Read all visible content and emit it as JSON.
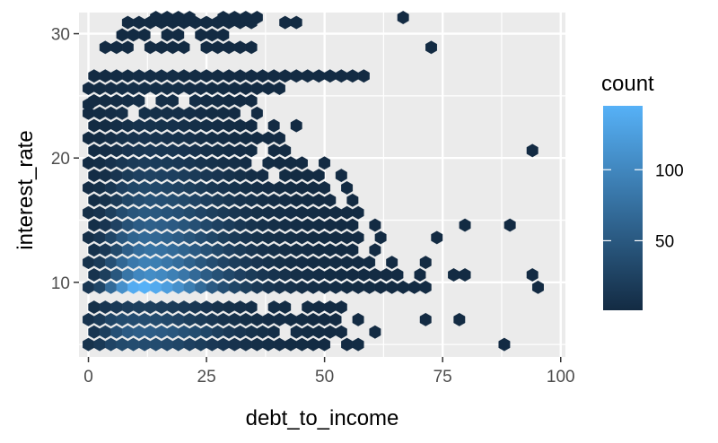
{
  "chart_data": {
    "type": "heatmap",
    "subtype": "hexbin",
    "title": "",
    "xlabel": "debt_to_income",
    "ylabel": "interest_rate",
    "xlim": [
      -2,
      101
    ],
    "ylim": [
      4.0,
      31.7
    ],
    "x_ticks": [
      0,
      25,
      50,
      75,
      100
    ],
    "x_tick_labels": [
      "0",
      "25",
      "50",
      "75",
      "100"
    ],
    "y_ticks": [
      10,
      20,
      30
    ],
    "y_tick_labels": [
      "10",
      "20",
      "30"
    ],
    "grid": true,
    "legend": {
      "title": "count",
      "position": "right",
      "min": 1,
      "max": 145,
      "breaks": [
        50,
        100
      ],
      "break_labels": [
        "50",
        "100"
      ],
      "color_low": "#132B43",
      "color_high": "#56B1F7"
    },
    "hex_width": 2.38,
    "hex_row_height": 1.0,
    "rows": [
      {
        "y": 5.0,
        "x_start": 0.0,
        "counts": [
          8,
          16,
          28,
          34,
          36,
          35,
          36,
          33,
          30,
          24,
          20,
          15,
          12,
          9,
          7,
          5,
          4,
          3,
          2,
          2,
          1,
          1,
          0,
          1,
          2,
          0,
          0,
          0,
          0,
          0,
          0,
          0,
          0,
          0,
          0,
          0,
          0,
          1,
          0
        ]
      },
      {
        "y": 6.0,
        "x_start": 1.19,
        "counts": [
          12,
          22,
          40,
          52,
          56,
          55,
          52,
          48,
          42,
          36,
          30,
          22,
          16,
          12,
          8,
          6,
          4,
          0,
          3,
          2,
          2,
          1,
          1,
          0,
          0,
          1,
          0,
          0,
          0,
          0,
          0,
          0,
          0,
          0,
          0,
          0,
          0,
          0,
          0,
          0,
          0
        ]
      },
      {
        "y": 7.0,
        "x_start": 0.0,
        "counts": [
          10,
          18,
          30,
          36,
          38,
          38,
          36,
          32,
          28,
          22,
          18,
          14,
          10,
          8,
          6,
          4,
          3,
          3,
          2,
          2,
          1,
          1,
          1,
          0,
          1,
          0,
          0,
          0,
          0,
          0,
          1,
          0,
          0,
          1,
          0
        ]
      },
      {
        "y": 8.0,
        "x_start": 1.19,
        "counts": [
          6,
          12,
          16,
          20,
          22,
          22,
          20,
          18,
          16,
          14,
          11,
          8,
          6,
          5,
          4,
          0,
          3,
          2,
          0,
          2,
          1,
          1,
          1,
          0,
          0,
          0,
          0,
          0,
          0,
          0,
          0,
          0,
          0,
          0,
          0,
          0,
          0,
          0,
          0,
          0
        ]
      },
      {
        "y": 9.0,
        "x_start": 0.0,
        "counts": [
          0,
          0,
          0,
          0,
          0,
          0,
          0,
          0,
          0,
          0,
          0,
          0,
          0,
          0,
          0,
          0,
          0,
          0,
          0,
          0,
          0,
          0,
          0,
          0,
          0,
          0,
          0,
          0,
          0,
          0,
          0,
          0,
          0,
          0,
          0,
          0
        ]
      },
      {
        "y": 9.6,
        "x_start": 0.0,
        "counts": [
          14,
          30,
          70,
          110,
          140,
          145,
          138,
          125,
          110,
          90,
          70,
          52,
          40,
          30,
          22,
          16,
          12,
          9,
          7,
          5,
          4,
          3,
          3,
          2,
          2,
          2,
          1,
          1,
          1,
          1,
          1,
          0,
          0,
          0,
          0,
          0,
          0,
          0,
          0,
          0,
          1
        ]
      },
      {
        "y": 10.6,
        "x_start": 1.19,
        "counts": [
          10,
          22,
          48,
          80,
          100,
          106,
          102,
          92,
          82,
          68,
          54,
          42,
          32,
          24,
          18,
          13,
          10,
          7,
          5,
          4,
          3,
          2,
          2,
          1,
          1,
          1,
          1,
          1,
          0,
          1,
          0,
          0,
          1,
          1,
          0,
          0,
          0,
          0,
          0,
          1
        ]
      },
      {
        "y": 11.6,
        "x_start": 0.0,
        "counts": [
          8,
          18,
          40,
          66,
          84,
          92,
          90,
          82,
          72,
          60,
          48,
          38,
          28,
          20,
          15,
          11,
          8,
          6,
          4,
          3,
          2,
          2,
          1,
          1,
          1,
          1,
          0,
          1,
          0,
          0,
          1,
          0,
          0,
          0,
          0,
          0,
          0,
          0,
          0,
          0
        ]
      },
      {
        "y": 12.6,
        "x_start": 1.19,
        "counts": [
          8,
          16,
          34,
          56,
          72,
          78,
          76,
          70,
          62,
          52,
          42,
          32,
          24,
          18,
          13,
          9,
          7,
          5,
          4,
          3,
          2,
          2,
          1,
          1,
          0,
          1,
          0,
          0,
          0,
          0,
          0,
          0,
          0,
          0,
          0,
          0,
          0,
          0,
          0,
          0
        ]
      },
      {
        "y": 13.6,
        "x_start": 0.0,
        "counts": [
          6,
          14,
          30,
          48,
          62,
          68,
          66,
          60,
          54,
          46,
          38,
          30,
          22,
          16,
          12,
          8,
          6,
          5,
          4,
          3,
          2,
          2,
          1,
          1,
          1,
          0,
          1,
          0,
          0,
          0,
          0,
          1,
          0,
          0,
          0,
          0,
          0,
          0,
          0,
          0
        ]
      },
      {
        "y": 14.6,
        "x_start": 1.19,
        "counts": [
          6,
          12,
          26,
          42,
          54,
          58,
          56,
          52,
          46,
          40,
          32,
          25,
          19,
          14,
          10,
          7,
          5,
          4,
          3,
          2,
          2,
          1,
          1,
          1,
          0,
          1,
          0,
          0,
          0,
          0,
          0,
          0,
          0,
          1,
          0,
          0,
          0,
          1,
          0,
          0
        ]
      },
      {
        "y": 15.6,
        "x_start": 0.0,
        "counts": [
          5,
          10,
          22,
          36,
          46,
          50,
          48,
          44,
          40,
          34,
          28,
          22,
          17,
          12,
          9,
          6,
          5,
          4,
          3,
          2,
          2,
          1,
          1,
          1,
          1,
          0,
          0,
          0,
          0,
          0,
          0,
          0,
          0,
          0,
          0,
          0,
          0,
          0,
          0,
          0
        ]
      },
      {
        "y": 16.6,
        "x_start": 1.19,
        "counts": [
          4,
          8,
          18,
          30,
          38,
          42,
          40,
          37,
          33,
          28,
          23,
          18,
          14,
          10,
          8,
          5,
          4,
          3,
          2,
          2,
          1,
          1,
          0,
          1,
          0,
          0,
          0,
          0,
          0,
          0,
          0,
          0,
          0,
          0,
          0,
          0,
          0,
          0,
          0,
          0
        ]
      },
      {
        "y": 17.6,
        "x_start": 0.0,
        "counts": [
          3,
          6,
          14,
          24,
          30,
          33,
          32,
          29,
          26,
          22,
          18,
          14,
          11,
          8,
          6,
          4,
          3,
          2,
          2,
          1,
          1,
          1,
          0,
          1,
          0,
          0,
          0,
          0,
          0,
          0,
          0,
          0,
          0,
          0,
          0,
          0,
          0,
          0,
          0,
          0
        ]
      },
      {
        "y": 18.6,
        "x_start": 1.19,
        "counts": [
          3,
          5,
          11,
          18,
          24,
          26,
          25,
          23,
          20,
          17,
          14,
          11,
          8,
          6,
          4,
          3,
          0,
          2,
          1,
          1,
          1,
          0,
          1,
          0,
          0,
          0,
          0,
          0,
          0,
          0,
          0,
          0,
          0,
          0,
          0,
          0,
          0,
          0,
          0,
          0
        ]
      },
      {
        "y": 19.6,
        "x_start": 0.0,
        "counts": [
          2,
          4,
          9,
          14,
          18,
          20,
          19,
          17,
          15,
          13,
          10,
          8,
          6,
          4,
          3,
          0,
          2,
          1,
          1,
          1,
          0,
          1,
          0,
          0,
          0,
          0,
          0,
          0,
          0,
          0,
          0,
          0,
          0,
          0,
          0,
          0,
          0,
          0,
          0,
          0,
          0
        ]
      },
      {
        "y": 20.6,
        "x_start": 1.19,
        "counts": [
          2,
          3,
          7,
          11,
          14,
          15,
          14,
          13,
          11,
          9,
          7,
          6,
          4,
          3,
          2,
          0,
          1,
          1,
          0,
          0,
          0,
          0,
          0,
          0,
          0,
          0,
          0,
          0,
          0,
          0,
          0,
          0,
          0,
          0,
          0,
          0,
          0,
          0,
          0,
          1
        ]
      },
      {
        "y": 21.6,
        "x_start": 0.0,
        "counts": [
          1,
          2,
          5,
          8,
          10,
          11,
          10,
          9,
          8,
          7,
          5,
          4,
          3,
          2,
          2,
          1,
          1,
          1,
          0,
          0,
          0,
          0,
          0,
          0,
          0,
          0,
          0,
          0,
          0,
          0,
          0,
          0,
          0,
          0,
          0,
          0,
          0,
          0,
          0,
          0
        ]
      },
      {
        "y": 22.6,
        "x_start": 1.19,
        "counts": [
          1,
          2,
          4,
          6,
          8,
          8,
          8,
          7,
          6,
          5,
          4,
          3,
          2,
          2,
          1,
          0,
          1,
          0,
          1,
          0,
          0,
          0,
          0,
          0,
          0,
          0,
          0,
          0,
          0,
          0,
          0,
          0,
          0,
          0,
          0,
          0,
          0,
          0,
          0,
          0
        ]
      },
      {
        "y": 23.6,
        "x_start": 0.0,
        "counts": [
          1,
          2,
          3,
          5,
          0,
          6,
          6,
          5,
          5,
          4,
          3,
          2,
          2,
          1,
          0,
          1,
          0,
          0,
          0,
          0,
          0,
          0,
          0,
          0,
          0,
          0,
          0,
          0,
          0,
          0,
          0,
          0,
          0,
          0,
          0,
          0,
          0,
          0,
          0,
          0
        ]
      },
      {
        "y": 24.3,
        "x_start": 0.0,
        "counts": [
          1,
          0,
          0,
          0,
          0,
          0,
          0,
          0,
          0,
          0,
          0,
          0,
          0,
          0,
          0,
          0,
          0,
          0,
          0,
          0,
          0,
          0,
          0,
          0,
          0,
          0,
          0,
          0,
          0,
          0,
          0,
          0,
          0,
          0,
          0,
          0,
          0,
          0,
          0,
          0
        ]
      },
      {
        "y": 24.6,
        "x_start": 1.19,
        "counts": [
          1,
          2,
          3,
          4,
          5,
          0,
          5,
          4,
          0,
          4,
          3,
          3,
          2,
          1,
          1,
          0,
          0,
          0,
          0,
          0,
          0,
          0,
          0,
          0,
          0,
          0,
          0,
          0,
          0,
          0,
          0,
          0,
          0,
          0,
          0,
          0,
          0,
          0,
          0,
          0
        ]
      },
      {
        "y": 25.6,
        "x_start": 0.0,
        "counts": [
          1,
          2,
          3,
          4,
          5,
          5,
          4,
          4,
          4,
          3,
          3,
          2,
          2,
          1,
          1,
          1,
          1,
          1,
          0,
          0,
          0,
          0,
          0,
          0,
          0,
          0,
          0,
          0,
          0,
          0,
          0,
          0,
          0,
          0,
          0,
          0,
          0,
          0,
          0,
          0
        ]
      },
      {
        "y": 26.6,
        "x_start": 1.19,
        "counts": [
          1,
          1,
          2,
          2,
          3,
          3,
          3,
          3,
          2,
          2,
          2,
          2,
          1,
          1,
          1,
          1,
          1,
          1,
          1,
          1,
          1,
          1,
          1,
          1,
          1,
          0,
          0,
          0,
          0,
          0,
          0,
          0,
          0,
          0,
          0,
          0,
          0,
          0,
          0,
          0
        ]
      },
      {
        "y": 28.9,
        "x_start": 3.57,
        "counts": [
          1,
          1,
          1,
          0,
          1,
          1,
          1,
          1,
          0,
          1,
          1,
          1,
          1,
          1,
          0,
          0,
          0,
          0,
          0,
          0,
          0,
          0,
          0,
          0,
          0,
          0,
          0,
          0,
          0,
          1
        ]
      },
      {
        "y": 29.9,
        "x_start": 7.14,
        "counts": [
          1,
          1,
          1,
          0,
          1,
          1,
          0,
          1,
          1,
          1,
          0,
          0,
          0,
          0,
          0,
          0,
          0,
          0,
          0,
          0,
          0,
          0,
          0,
          0,
          0,
          0,
          0,
          0
        ]
      },
      {
        "y": 30.9,
        "x_start": 8.33,
        "counts": [
          1,
          1,
          1,
          1,
          1,
          1,
          1,
          1,
          1,
          1,
          1,
          1,
          0,
          0,
          1,
          1,
          0,
          0,
          0,
          0,
          0,
          0,
          0,
          0,
          0,
          0,
          0,
          0,
          0
        ]
      },
      {
        "y": 31.3,
        "x_start": 14.28,
        "counts": [
          1,
          1,
          1,
          1,
          0,
          0,
          1,
          1,
          1,
          1,
          0,
          0,
          0,
          0,
          0,
          0,
          0,
          0,
          0,
          0,
          0,
          0,
          1
        ]
      }
    ]
  }
}
